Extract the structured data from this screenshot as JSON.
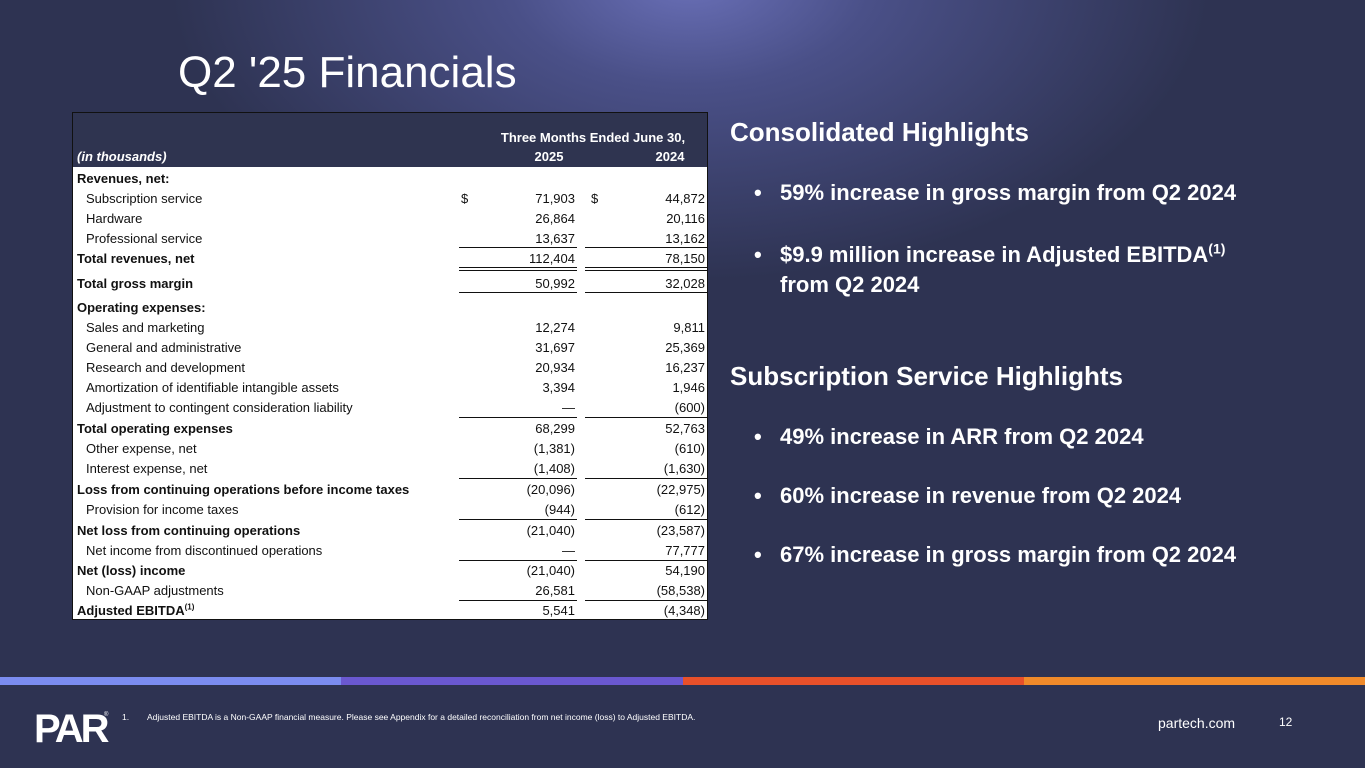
{
  "slide": {
    "title": "Q2 '25 Financials",
    "website": "partech.com",
    "page_number": "12",
    "logo_text": "PAR",
    "accent_colors": [
      "#7b8cf0",
      "#6a58d0",
      "#e8502a",
      "#f08a2a"
    ]
  },
  "table": {
    "column_group": "Three Months Ended June 30,",
    "units_label": "(in thousands)",
    "col_2025": "2025",
    "col_2024": "2024",
    "currency_symbol": "$",
    "rows": [
      {
        "label": "Revenues, net:",
        "v2025": "",
        "v2024": ""
      },
      {
        "label": "Subscription service",
        "v2025": "71,903",
        "v2024": "44,872"
      },
      {
        "label": "Hardware",
        "v2025": "26,864",
        "v2024": "20,116"
      },
      {
        "label": "Professional service",
        "v2025": "13,637",
        "v2024": "13,162"
      },
      {
        "label": "Total revenues, net",
        "v2025": "112,404",
        "v2024": "78,150"
      },
      {
        "label": "Total gross margin",
        "v2025": "50,992",
        "v2024": "32,028"
      },
      {
        "label": "Operating expenses:",
        "v2025": "",
        "v2024": ""
      },
      {
        "label": "Sales and marketing",
        "v2025": "12,274",
        "v2024": "9,811"
      },
      {
        "label": "General and administrative",
        "v2025": "31,697",
        "v2024": "25,369"
      },
      {
        "label": "Research and development",
        "v2025": "20,934",
        "v2024": "16,237"
      },
      {
        "label": "Amortization of identifiable intangible assets",
        "v2025": "3,394",
        "v2024": "1,946"
      },
      {
        "label": "Adjustment to contingent consideration liability",
        "v2025": "—",
        "v2024": "(600)"
      },
      {
        "label": "Total operating expenses",
        "v2025": "68,299",
        "v2024": "52,763"
      },
      {
        "label": "Other expense, net",
        "v2025": "(1,381)",
        "v2024": "(610)"
      },
      {
        "label": "Interest expense, net",
        "v2025": "(1,408)",
        "v2024": "(1,630)"
      },
      {
        "label": "Loss from continuing operations before income taxes",
        "v2025": "(20,096)",
        "v2024": "(22,975)"
      },
      {
        "label": "Provision for income taxes",
        "v2025": "(944)",
        "v2024": "(612)"
      },
      {
        "label": "Net loss from continuing operations",
        "v2025": "(21,040)",
        "v2024": "(23,587)"
      },
      {
        "label": "Net income from discontinued operations",
        "v2025": "—",
        "v2024": "77,777"
      },
      {
        "label": "Net (loss) income",
        "v2025": "(21,040)",
        "v2024": "54,190"
      },
      {
        "label": "Non-GAAP adjustments",
        "v2025": "26,581",
        "v2024": "(58,538)"
      },
      {
        "label": "Adjusted EBITDA",
        "v2025": "5,541",
        "v2024": "(4,348)"
      }
    ],
    "footnote_marker": "(1)"
  },
  "highlights": {
    "consolidated_heading": "Consolidated Highlights",
    "consolidated_items": [
      {
        "text": "59% increase in gross margin from Q2 2024"
      },
      {
        "line1": "$9.9 million increase in Adjusted EBITDA",
        "sup": "(1)",
        "line2": "from Q2 2024"
      }
    ],
    "subscription_heading": "Subscription Service Highlights",
    "subscription_items": [
      {
        "text": "49% increase in ARR from Q2 2024"
      },
      {
        "text": "60% increase in revenue from Q2 2024"
      },
      {
        "text": "67% increase in gross margin from Q2 2024"
      }
    ],
    "bullet_glyph": "•"
  },
  "footnote": {
    "number": "1.",
    "text": "Adjusted EBITDA is a Non-GAAP financial measure. Please see Appendix for a detailed reconciliation from net income (loss) to Adjusted EBITDA."
  }
}
